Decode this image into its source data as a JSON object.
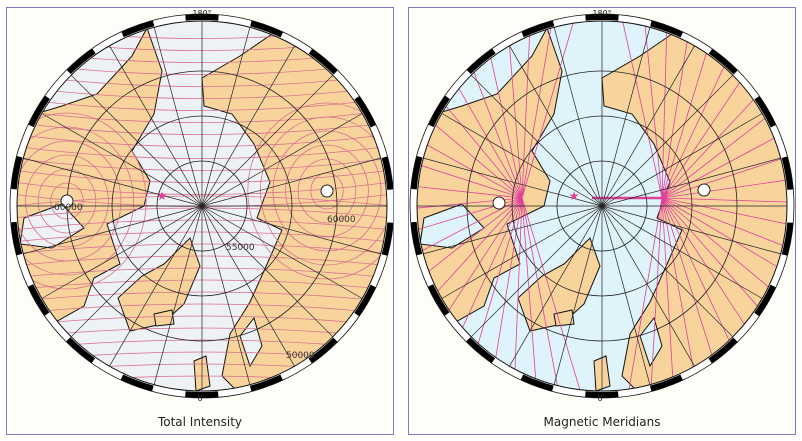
{
  "maps": [
    {
      "title": "Total Intensity",
      "top_label": "180°",
      "bottom_label": "0°",
      "contour_labels": [
        "60000",
        "60000",
        "55000",
        "50000"
      ],
      "colors": {
        "ocean": "#eef2f5",
        "land": "#f8d49c",
        "contour": "#d8708f"
      }
    },
    {
      "title": "Magnetic Meridians",
      "top_label": "180°",
      "bottom_label": "0°",
      "colors": {
        "ocean": "#def3fa",
        "land": "#f8d49c",
        "meridian": "#e0409a"
      }
    }
  ]
}
